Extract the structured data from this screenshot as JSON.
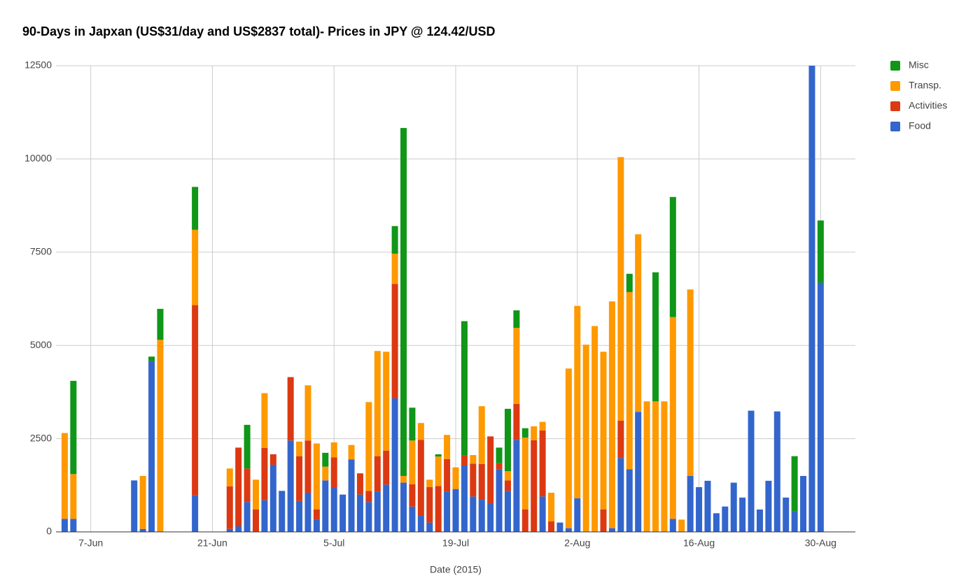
{
  "chart_data": {
    "type": "stacked-bar",
    "title": "90-Days in Japxan (US$31/day and US$2837 total)- Prices in JPY @ 124.42/USD",
    "x_label": "Date (2015)",
    "x": [
      "2015-06-04",
      "2015-06-05",
      "2015-06-12",
      "2015-06-13",
      "2015-06-14",
      "2015-06-15",
      "2015-06-19",
      "2015-06-23",
      "2015-06-24",
      "2015-06-25",
      "2015-06-26",
      "2015-06-27",
      "2015-06-28",
      "2015-06-29",
      "2015-06-30",
      "2015-07-01",
      "2015-07-02",
      "2015-07-03",
      "2015-07-04",
      "2015-07-05",
      "2015-07-06",
      "2015-07-07",
      "2015-07-08",
      "2015-07-09",
      "2015-07-10",
      "2015-07-11",
      "2015-07-12",
      "2015-07-13",
      "2015-07-14",
      "2015-07-15",
      "2015-07-16",
      "2015-07-17",
      "2015-07-18",
      "2015-07-19",
      "2015-07-20",
      "2015-07-21",
      "2015-07-22",
      "2015-07-23",
      "2015-07-24",
      "2015-07-25",
      "2015-07-26",
      "2015-07-27",
      "2015-07-28",
      "2015-07-29",
      "2015-07-30",
      "2015-07-31",
      "2015-08-01",
      "2015-08-02",
      "2015-08-03",
      "2015-08-04",
      "2015-08-05",
      "2015-08-06",
      "2015-08-07",
      "2015-08-08",
      "2015-08-09",
      "2015-08-10",
      "2015-08-11",
      "2015-08-12",
      "2015-08-13",
      "2015-08-14",
      "2015-08-15",
      "2015-08-16",
      "2015-08-17",
      "2015-08-18",
      "2015-08-19",
      "2015-08-20",
      "2015-08-21",
      "2015-08-22",
      "2015-08-23",
      "2015-08-24",
      "2015-08-25",
      "2015-08-26",
      "2015-08-27",
      "2015-08-28",
      "2015-08-29",
      "2015-08-30"
    ],
    "series": [
      {
        "name": "Food",
        "color": "#3366cc",
        "values": [
          350,
          350,
          1380,
          80,
          4580,
          0,
          980,
          80,
          150,
          800,
          0,
          850,
          1800,
          1100,
          2450,
          830,
          1050,
          330,
          1380,
          1180,
          1000,
          1940,
          1000,
          800,
          1080,
          1270,
          3580,
          1320,
          680,
          430,
          250,
          0,
          1080,
          1150,
          1780,
          950,
          860,
          750,
          1680,
          1100,
          2470,
          0,
          0,
          950,
          0,
          250,
          100,
          900,
          0,
          0,
          0,
          100,
          1980,
          1680,
          3220,
          0,
          0,
          0,
          350,
          0,
          1500,
          1200,
          1370,
          500,
          680,
          1320,
          920,
          3250,
          600,
          1370,
          3230,
          920,
          550,
          1500,
          12500,
          6680
        ]
      },
      {
        "name": "Activities",
        "color": "#dc3912",
        "values": [
          0,
          0,
          0,
          0,
          0,
          0,
          5100,
          1140,
          2110,
          900,
          600,
          1400,
          280,
          0,
          1700,
          1200,
          1400,
          270,
          0,
          820,
          0,
          0,
          570,
          300,
          950,
          910,
          3070,
          0,
          600,
          2040,
          950,
          1230,
          870,
          0,
          270,
          880,
          960,
          1810,
          160,
          280,
          960,
          600,
          2460,
          1770,
          280,
          0,
          0,
          0,
          0,
          0,
          600,
          0,
          1000,
          0,
          0,
          0,
          0,
          0,
          0,
          0,
          0,
          0,
          0,
          0,
          0,
          0,
          0,
          0,
          0,
          0,
          0,
          0,
          0,
          0,
          0,
          0
        ]
      },
      {
        "name": "Transp.",
        "color": "#ff9900",
        "values": [
          2300,
          1200,
          0,
          1420,
          0,
          5150,
          2020,
          480,
          0,
          0,
          800,
          1470,
          0,
          0,
          0,
          390,
          1480,
          1770,
          370,
          400,
          0,
          390,
          0,
          2380,
          2820,
          2650,
          810,
          180,
          1170,
          450,
          200,
          790,
          650,
          580,
          0,
          230,
          1550,
          0,
          0,
          250,
          2040,
          1930,
          370,
          230,
          770,
          0,
          4280,
          5160,
          5020,
          5520,
          4230,
          6080,
          7070,
          4750,
          4760,
          3500,
          3500,
          3500,
          5410,
          330,
          5000,
          0,
          0,
          0,
          0,
          0,
          0,
          0,
          0,
          0,
          0,
          0,
          0,
          0,
          0,
          0
        ]
      },
      {
        "name": "Misc",
        "color": "#109618",
        "values": [
          0,
          2500,
          0,
          0,
          120,
          830,
          1150,
          0,
          0,
          1170,
          0,
          0,
          0,
          0,
          0,
          0,
          0,
          0,
          370,
          0,
          0,
          0,
          0,
          0,
          0,
          0,
          740,
          9330,
          880,
          0,
          0,
          60,
          0,
          0,
          3600,
          0,
          0,
          0,
          420,
          1670,
          470,
          250,
          0,
          0,
          0,
          0,
          0,
          0,
          0,
          0,
          0,
          0,
          0,
          490,
          0,
          0,
          3460,
          0,
          3220,
          0,
          0,
          0,
          0,
          0,
          0,
          0,
          0,
          0,
          0,
          0,
          0,
          0,
          1480,
          0,
          0,
          1670
        ]
      }
    ],
    "xlim": [
      "2015-06-03",
      "2015-09-03"
    ],
    "xticks": [
      {
        "value": "2015-06-07",
        "label": "7-Jun"
      },
      {
        "value": "2015-06-21",
        "label": "21-Jun"
      },
      {
        "value": "2015-07-05",
        "label": "5-Jul"
      },
      {
        "value": "2015-07-19",
        "label": "19-Jul"
      },
      {
        "value": "2015-08-02",
        "label": "2-Aug"
      },
      {
        "value": "2015-08-16",
        "label": "16-Aug"
      },
      {
        "value": "2015-08-30",
        "label": "30-Aug"
      }
    ],
    "ylim": [
      0,
      12500
    ],
    "yticks": [
      0,
      2500,
      5000,
      7500,
      10000,
      12500
    ],
    "grid": true,
    "legend": "right"
  }
}
